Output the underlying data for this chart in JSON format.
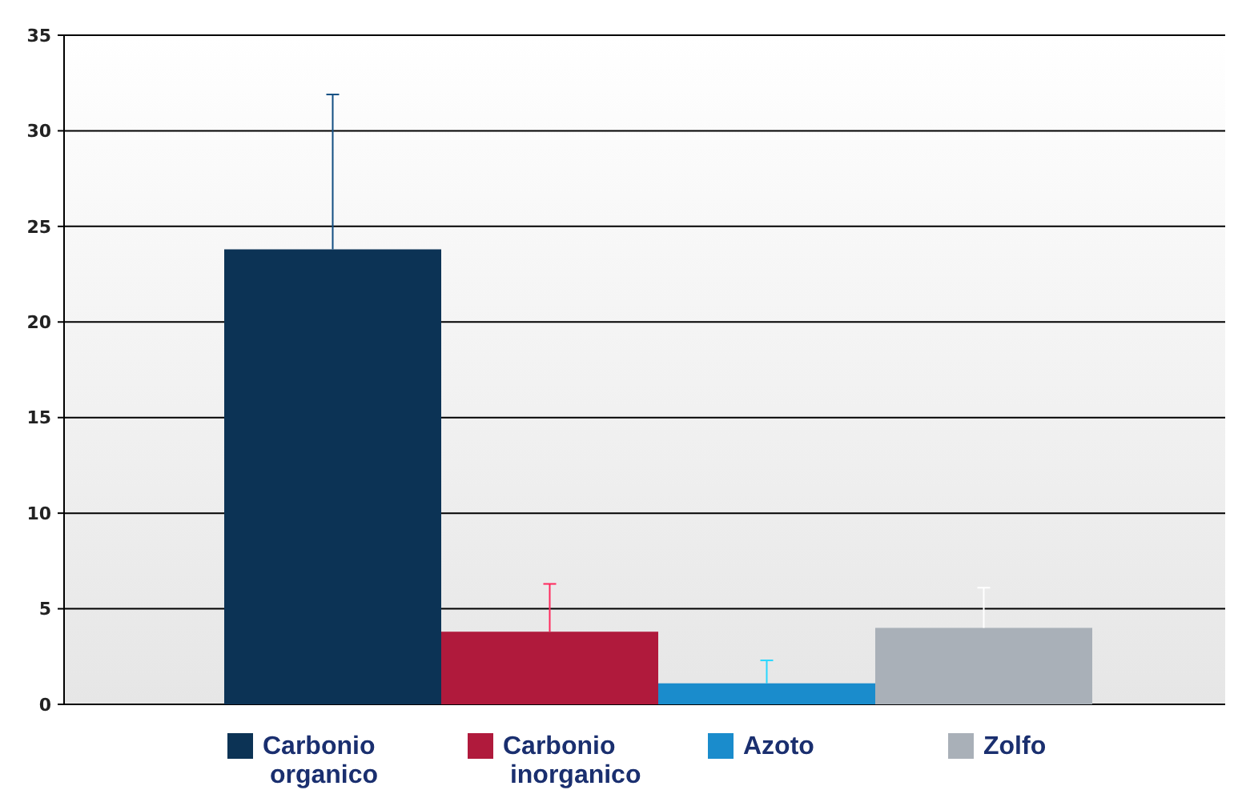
{
  "chart_data": {
    "type": "bar",
    "categories": [
      null,
      null,
      null,
      null
    ],
    "series": [
      {
        "name": "Carbonio organico",
        "color": "#0c3355",
        "values": [
          23.8,
          null,
          null,
          null
        ],
        "errors": [
          [
            23.8,
            31.9
          ],
          null,
          null,
          null
        ]
      },
      {
        "name": "Carbonio inorganico",
        "color": "#b01a3c",
        "values": [
          null,
          3.8,
          null,
          null
        ],
        "errors": [
          null,
          [
            3.8,
            6.3
          ],
          null,
          null
        ]
      },
      {
        "name": "Azoto",
        "color": "#1a8ccc",
        "values": [
          null,
          null,
          1.1,
          null
        ],
        "errors": [
          null,
          null,
          [
            1.1,
            2.3
          ],
          null
        ]
      },
      {
        "name": "Zolfo",
        "color": "#a9b0b8",
        "values": [
          null,
          null,
          null,
          4.0
        ],
        "errors": [
          null,
          null,
          null,
          [
            4.0,
            6.1
          ]
        ]
      }
    ],
    "ylim": [
      0,
      35
    ],
    "yticks": [
      0,
      5,
      10,
      15,
      20,
      25,
      30,
      35
    ],
    "grid": "y",
    "legend": "bottom",
    "tick_labels": "y"
  }
}
